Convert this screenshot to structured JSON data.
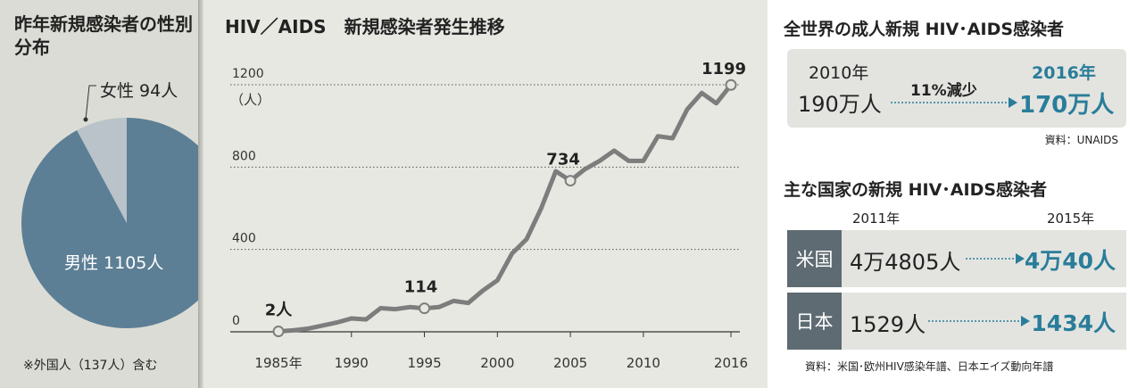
{
  "pie_panel": {
    "title": "昨年新規感染者の性別分布",
    "note": "※外国人（137人）含む",
    "female_label": "女性 94人",
    "male_label": "男性 1105人",
    "colors": {
      "male": "#5c7f95",
      "female": "#b9c3c9"
    }
  },
  "line_panel": {
    "title": "HIV／AIDS　新規感染者発生推移",
    "y_unit": "（人）",
    "x_tick_labels": [
      "1985年",
      "1990",
      "1995",
      "2000",
      "2005",
      "2010",
      "2016"
    ],
    "y_tick_labels": [
      "0",
      "400",
      "800",
      "1200"
    ],
    "annotations": [
      "2人",
      "114",
      "734",
      "1199"
    ]
  },
  "world_panel": {
    "title": "全世界の成人新規 HIV･AIDS感染者",
    "year_from": "2010年",
    "value_from": "190万人",
    "change": "11%減少",
    "year_to": "2016年",
    "value_to": "170万人",
    "source": "資料：UNAIDS"
  },
  "countries_panel": {
    "title": "主な国家の新規 HIV･AIDS感染者",
    "year_a": "2011年",
    "year_b": "2015年",
    "rows": [
      {
        "name": "米国",
        "value_a": "4万4805人",
        "value_b": "4万40人"
      },
      {
        "name": "日本",
        "value_a": "1529人",
        "value_b": "1434人"
      }
    ],
    "source": "資料：米国･欧州HIV感染年譜、日本エイズ動向年譜"
  },
  "chart_data": [
    {
      "type": "pie",
      "labels": [
        "女性",
        "男性"
      ],
      "values": [
        94,
        1105
      ],
      "title": "昨年新規感染者の性別分布",
      "colors": [
        "#b9c3c9",
        "#5c7f95"
      ]
    },
    {
      "type": "line",
      "title": "HIV／AIDS　新規感染者発生推移",
      "ylabel": "（人）",
      "xlabel": "",
      "ylim": [
        0,
        1200
      ],
      "grid": true,
      "x": [
        1985,
        1986,
        1987,
        1988,
        1989,
        1990,
        1991,
        1992,
        1993,
        1994,
        1995,
        1996,
        1997,
        1998,
        1999,
        2000,
        2001,
        2002,
        2003,
        2004,
        2005,
        2006,
        2007,
        2008,
        2009,
        2010,
        2011,
        2012,
        2013,
        2014,
        2015,
        2016
      ],
      "series": [
        {
          "values": [
            2,
            7,
            15,
            30,
            45,
            65,
            60,
            115,
            110,
            120,
            114,
            120,
            150,
            140,
            200,
            250,
            380,
            450,
            600,
            780,
            734,
            790,
            830,
            880,
            830,
            830,
            950,
            940,
            1080,
            1160,
            1110,
            1199
          ],
          "color": "#7d7d7d"
        }
      ],
      "marked_points": [
        {
          "x": 1985,
          "y": 2,
          "label": "2人"
        },
        {
          "x": 1995,
          "y": 114,
          "label": "114"
        },
        {
          "x": 2005,
          "y": 734,
          "label": "734"
        },
        {
          "x": 2016,
          "y": 1199,
          "label": "1199"
        }
      ]
    }
  ]
}
